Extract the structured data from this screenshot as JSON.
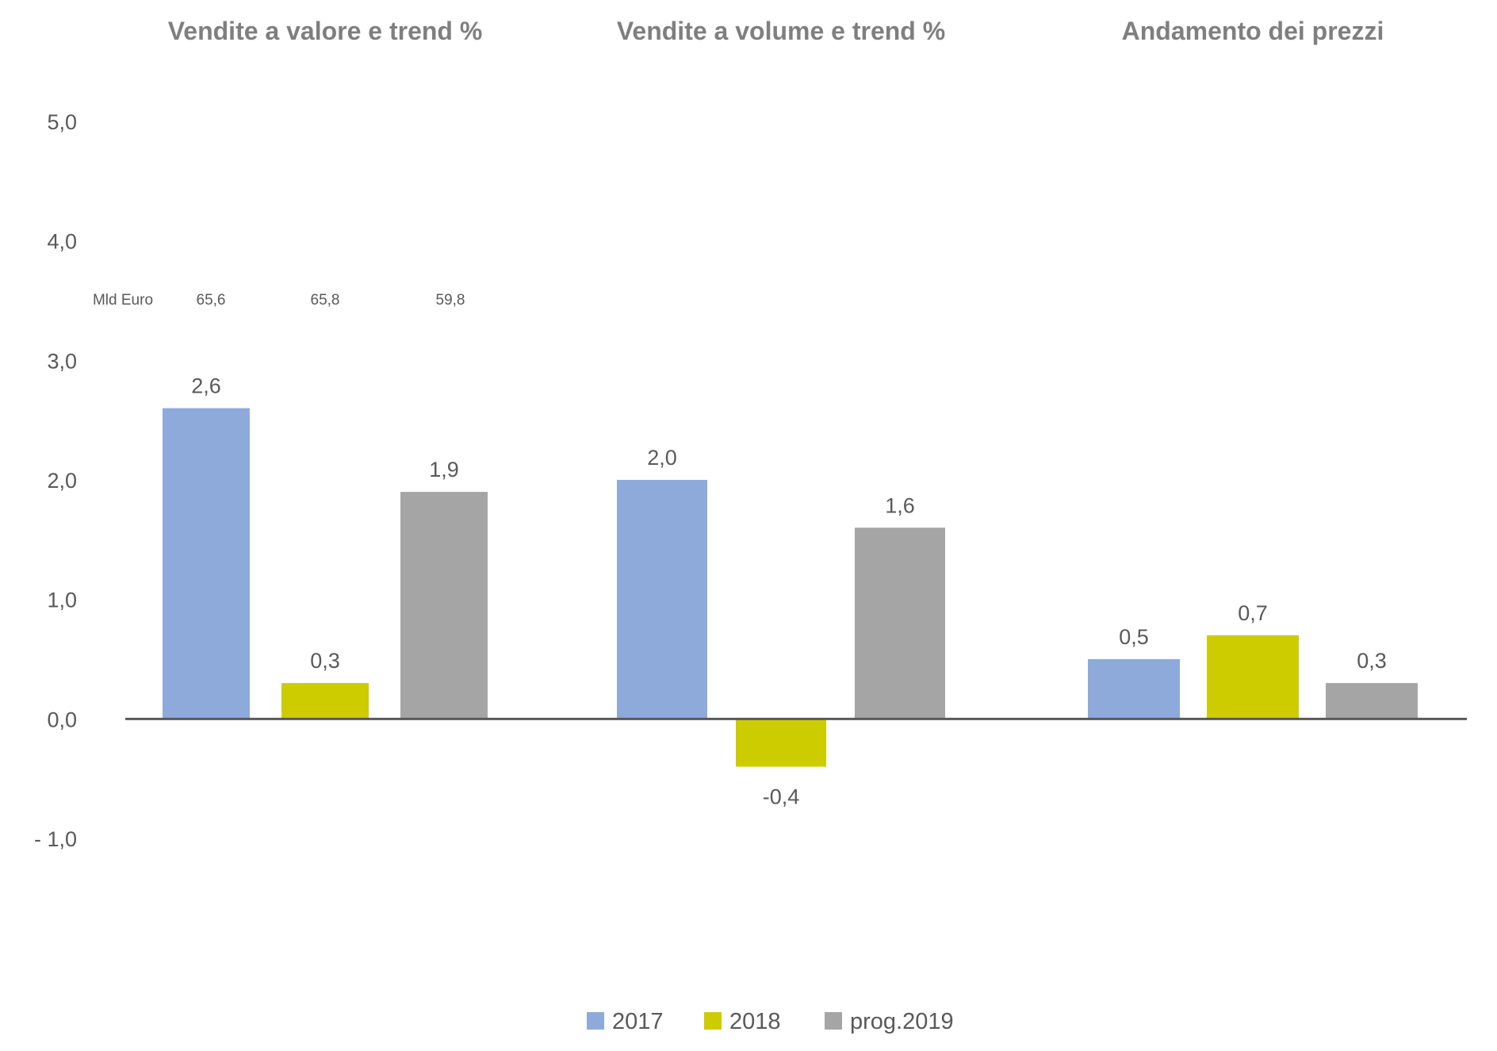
{
  "chart_data": {
    "type": "bar",
    "ylim": [
      -1.0,
      5.0
    ],
    "yticks": [
      5.0,
      4.0,
      3.0,
      2.0,
      1.0,
      0.0,
      -1.0
    ],
    "ytick_labels": [
      "5,0",
      "4,0",
      "3,0",
      "2,0",
      "1,0",
      "0,0",
      "- 1,0"
    ],
    "grid": false,
    "legend_position": "bottom",
    "groups": [
      {
        "title": "Vendite a valore e trend %",
        "values": [
          2.6,
          0.3,
          1.9
        ],
        "labels": [
          "2,6",
          "0,3",
          "1,9"
        ]
      },
      {
        "title": "Vendite a volume e trend %",
        "values": [
          2.0,
          -0.4,
          1.6
        ],
        "labels": [
          "2,0",
          "-0,4",
          "1,6"
        ]
      },
      {
        "title": "Andamento dei prezzi",
        "values": [
          0.5,
          0.7,
          0.3
        ],
        "labels": [
          "0,5",
          "0,7",
          "0,3"
        ]
      }
    ],
    "series": [
      {
        "name": "2017",
        "color": "#8eaadb"
      },
      {
        "name": "2018",
        "color": "#cccc00"
      },
      {
        "name": "prog.2019",
        "color": "#a5a5a5"
      }
    ],
    "annotation": {
      "label": "Mld Euro",
      "values": [
        "65,6",
        "65,8",
        "59,8"
      ]
    }
  }
}
